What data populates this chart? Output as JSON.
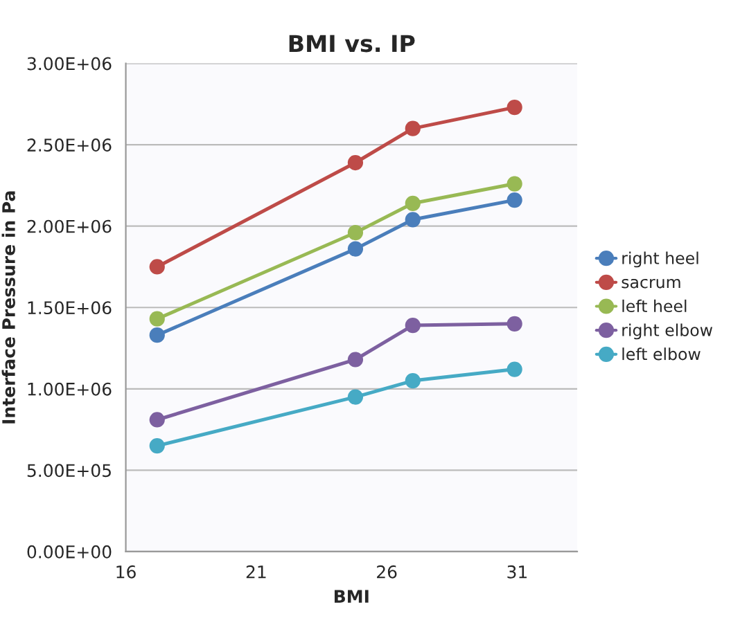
{
  "chart_data": {
    "type": "line",
    "title": "BMI vs. IP",
    "xlabel": "BMI",
    "ylabel": "Interface Pressure in Pa",
    "x": [
      17.2,
      24.8,
      27.0,
      30.9
    ],
    "series": [
      {
        "name": "right heel",
        "color": "#4a7ebb",
        "values": [
          1330000,
          1860000,
          2040000,
          2160000
        ]
      },
      {
        "name": "sacrum",
        "color": "#be4b48",
        "values": [
          1750000,
          2390000,
          2600000,
          2730000
        ]
      },
      {
        "name": "left heel",
        "color": "#98b954",
        "values": [
          1430000,
          1960000,
          2140000,
          2260000
        ]
      },
      {
        "name": "right elbow",
        "color": "#7d60a0",
        "values": [
          810000,
          1180000,
          1390000,
          1400000
        ]
      },
      {
        "name": "left elbow",
        "color": "#46aac5",
        "values": [
          650000,
          950000,
          1050000,
          1120000
        ]
      }
    ],
    "xlim": [
      16,
      33.3
    ],
    "xticks": [
      16,
      21,
      26,
      31
    ],
    "ylim": [
      0,
      3000000
    ],
    "yticks": [
      {
        "value": 0,
        "label": "0.00E+00"
      },
      {
        "value": 500000,
        "label": "5.00E+05"
      },
      {
        "value": 1000000,
        "label": "1.00E+06"
      },
      {
        "value": 1500000,
        "label": "1.50E+06"
      },
      {
        "value": 2000000,
        "label": "2.00E+06"
      },
      {
        "value": 2500000,
        "label": "2.50E+06"
      },
      {
        "value": 3000000,
        "label": "3.00E+06"
      }
    ],
    "grid": "y",
    "legend": "right",
    "marker": "circle",
    "line_style": "solid"
  }
}
